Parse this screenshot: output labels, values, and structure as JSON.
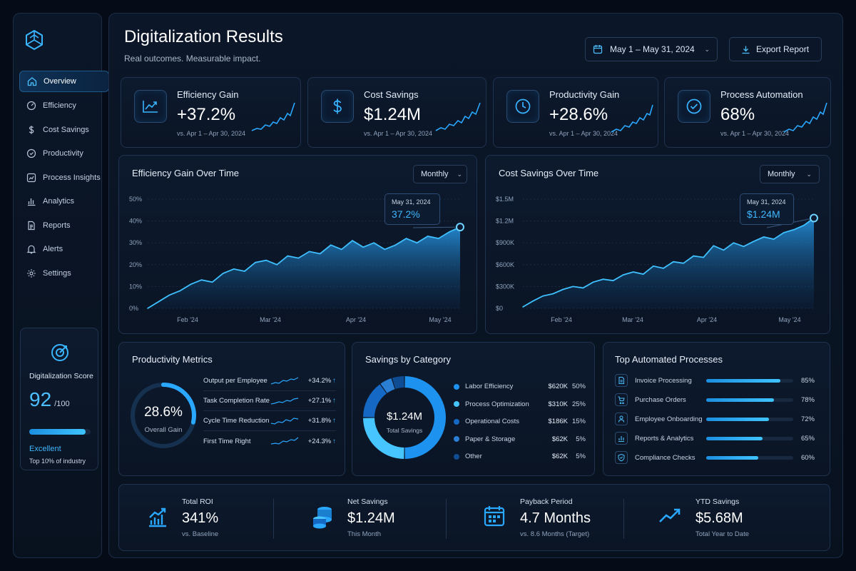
{
  "sidebar": {
    "logo_icon": "cube-logo-icon",
    "items": [
      {
        "label": "Overview",
        "icon": "home-icon",
        "active": true
      },
      {
        "label": "Efficiency",
        "icon": "gauge-icon"
      },
      {
        "label": "Cost Savings",
        "icon": "dollar-icon"
      },
      {
        "label": "Productivity",
        "icon": "target-icon"
      },
      {
        "label": "Process Insights",
        "icon": "process-icon"
      },
      {
        "label": "Analytics",
        "icon": "bar-chart-icon"
      },
      {
        "label": "Reports",
        "icon": "document-icon"
      },
      {
        "label": "Alerts",
        "icon": "bell-icon"
      },
      {
        "label": "Settings",
        "icon": "gear-icon"
      }
    ],
    "score": {
      "title": "Digitalization Score",
      "value": "92",
      "max": "/100",
      "progress": 0.92,
      "rating": "Excellent",
      "note": "Top 10% of industry"
    }
  },
  "header": {
    "title": "Digitalization Results",
    "subtitle": "Real outcomes. Measurable impact.",
    "date_range": "May 1 – May 31, 2024",
    "export_label": "Export Report"
  },
  "kpis": [
    {
      "title": "Efficiency Gain",
      "value": "+37.2%",
      "sub": "vs. Apr 1 – Apr 30, 2024",
      "icon": "trend-up-icon"
    },
    {
      "title": "Cost Savings",
      "value": "$1.24M",
      "sub": "vs. Apr 1 – Apr 30, 2024",
      "icon": "dollar-icon"
    },
    {
      "title": "Productivity Gain",
      "value": "+28.6%",
      "sub": "vs. Apr 1 – Apr 30, 2024",
      "icon": "clock-icon"
    },
    {
      "title": "Process Automation",
      "value": "68%",
      "sub": "vs. Apr 1 – Apr 30, 2024",
      "icon": "check-circle-icon"
    }
  ],
  "chart_data": [
    {
      "type": "area",
      "title": "Efficiency Gain Over Time",
      "period": "Monthly",
      "x_ticks": [
        "Feb '24",
        "Mar '24",
        "Apr '24",
        "May '24"
      ],
      "y_ticks": [
        "0%",
        "10%",
        "20%",
        "30%",
        "40%",
        "50%"
      ],
      "ylim": [
        0,
        50
      ],
      "x_start": "Jan '24",
      "x_end": "May 31, 2024",
      "series": [
        {
          "values": [
            0,
            3,
            6,
            8,
            11,
            13,
            12,
            16,
            18,
            17,
            21,
            22,
            20,
            24,
            23,
            26,
            25,
            29,
            27,
            31,
            28,
            30,
            27,
            29,
            32,
            30,
            33,
            32,
            35,
            37.2
          ]
        }
      ],
      "tooltip": {
        "date": "May 31, 2024",
        "value": "37.2%"
      }
    },
    {
      "type": "area",
      "title": "Cost Savings Over Time",
      "period": "Monthly",
      "x_ticks": [
        "Feb '24",
        "Mar '24",
        "Apr '24",
        "May '24"
      ],
      "y_ticks": [
        "$0",
        "$300K",
        "$600K",
        "$900K",
        "$1.2M",
        "$1.5M"
      ],
      "ylim": [
        0,
        1.5
      ],
      "x_start": "Jan '24",
      "x_end": "May 31, 2024",
      "series": [
        {
          "values": [
            0.02,
            0.1,
            0.17,
            0.2,
            0.26,
            0.3,
            0.28,
            0.36,
            0.4,
            0.38,
            0.46,
            0.5,
            0.47,
            0.58,
            0.55,
            0.64,
            0.62,
            0.72,
            0.7,
            0.86,
            0.8,
            0.9,
            0.85,
            0.92,
            0.98,
            0.95,
            1.04,
            1.08,
            1.14,
            1.24
          ]
        }
      ],
      "tooltip": {
        "date": "May 31, 2024",
        "value": "$1.24M"
      }
    },
    {
      "type": "pie",
      "title": "Savings by Category",
      "center_value": "$1.24M",
      "center_label": "Total Savings",
      "slices": [
        {
          "label": "Labor Efficiency",
          "amount": "$620K",
          "pct": "50%",
          "value": 50,
          "color": "#1d92ee"
        },
        {
          "label": "Process Optimization",
          "amount": "$310K",
          "pct": "25%",
          "value": 25,
          "color": "#47c5ff"
        },
        {
          "label": "Operational Costs",
          "amount": "$186K",
          "pct": "15%",
          "value": 15,
          "color": "#1568c4"
        },
        {
          "label": "Paper & Storage",
          "amount": "$62K",
          "pct": "5%",
          "value": 5,
          "color": "#2a7fd4"
        },
        {
          "label": "Other",
          "amount": "$62K",
          "pct": "5%",
          "value": 5,
          "color": "#0e4c94"
        }
      ]
    },
    {
      "type": "bar",
      "title": "Top Automated Processes",
      "categories": [
        "Invoice Processing",
        "Purchase Orders",
        "Employee Onboarding",
        "Reports & Analytics",
        "Compliance Checks"
      ],
      "values": [
        85,
        78,
        72,
        65,
        60
      ],
      "labels": [
        "85%",
        "78%",
        "72%",
        "65%",
        "60%"
      ],
      "icons": [
        "invoice-icon",
        "cart-icon",
        "user-icon",
        "report-icon",
        "shield-icon"
      ],
      "xlim": [
        0,
        100
      ]
    }
  ],
  "productivity": {
    "title": "Productivity Metrics",
    "gauge_value": "28.6%",
    "gauge_label": "Overall Gain",
    "gauge_fraction": 0.286,
    "metrics": [
      {
        "label": "Output per Employee",
        "value": "+34.2%"
      },
      {
        "label": "Task Completion Rate",
        "value": "+27.1%"
      },
      {
        "label": "Cycle Time Reduction",
        "value": "+31.8%"
      },
      {
        "label": "First Time Right",
        "value": "+24.3%"
      }
    ],
    "arrow": "↑"
  },
  "summary": [
    {
      "title": "Total ROI",
      "value": "341%",
      "sub": "vs. Baseline",
      "icon": "bar-trend-icon"
    },
    {
      "title": "Net Savings",
      "value": "$1.24M",
      "sub": "This Month",
      "icon": "coins-icon"
    },
    {
      "title": "Payback Period",
      "value": "4.7 Months",
      "sub": "vs. 8.6 Months (Target)",
      "icon": "calendar-icon"
    },
    {
      "title": "YTD Savings",
      "value": "$5.68M",
      "sub": "Total Year to Date",
      "icon": "trend-up-icon"
    }
  ],
  "colors": {
    "accent": "#2aa8ff",
    "background": "#050b17",
    "panel": "#0b1628",
    "border": "#1f3350"
  }
}
